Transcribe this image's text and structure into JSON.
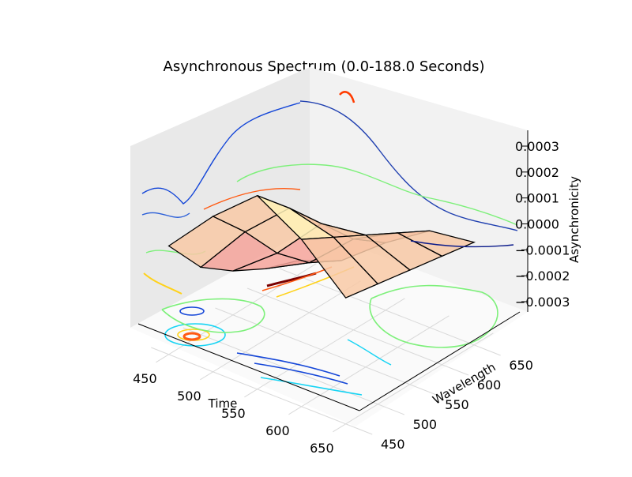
{
  "chart_data": {
    "type": "surface3d",
    "title": "Asynchronous Spectrum (0.0-188.0 Seconds)",
    "xlabel": "Time",
    "ylabel": "Wavelength",
    "zlabel": "Asynchronicity",
    "x_ticks": [
      "450",
      "500",
      "550",
      "600",
      "650"
    ],
    "y_ticks": [
      "450",
      "500",
      "550",
      "600",
      "650"
    ],
    "z_ticks": [
      "0.0003",
      "0.0002",
      "0.0001",
      "0.0000",
      "−0.0001",
      "−0.0002",
      "−0.0003"
    ],
    "x_range": [
      430,
      680
    ],
    "y_range": [
      430,
      680
    ],
    "z_range": [
      -0.00035,
      0.00035
    ],
    "grid": true,
    "colormap": "jet",
    "colors": {
      "surface_low": "#f4a39a",
      "surface_mid": "#f8c9a6",
      "surface_high": "#fff2b8",
      "wire": "#000000",
      "pane": "#f2f2f2",
      "contour_blue": "#1446d8",
      "contour_cyan": "#17d4f4",
      "contour_green": "#7df07a",
      "contour_yellow": "#ffd21a",
      "contour_orange": "#ff5a12",
      "contour_red": "#7a0000"
    },
    "surface_grid_x": [
      450,
      500,
      550,
      600,
      650
    ],
    "surface_grid_y": [
      450,
      500,
      550,
      600,
      650
    ],
    "surface_z": [
      [
        2e-05,
        0.00018,
        0.00031,
        0.00022,
        8e-05
      ],
      [
        -0.00012,
        6e-05,
        0.0002,
        0.00016,
        6e-05
      ],
      [
        -0.0002,
        -8e-05,
        8e-05,
        0.0001,
        4e-05
      ],
      [
        -0.00026,
        -0.00018,
        -4e-05,
        4e-05,
        2e-05
      ],
      [
        -0.0003,
        -0.00024,
        -0.00012,
        -2e-05,
        0.0
      ]
    ]
  }
}
